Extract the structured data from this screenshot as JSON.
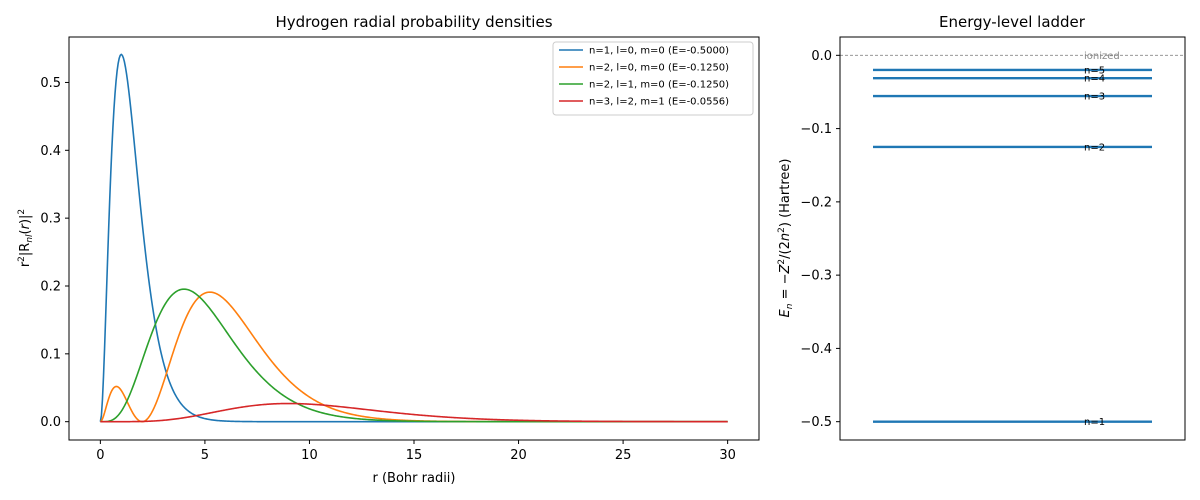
{
  "chart_data": [
    {
      "type": "line",
      "title": "Hydrogen radial probability densities",
      "xlabel": "r (Bohr radii)",
      "ylabel": "r²|R_nl(r)|²",
      "xlim": [
        -1.5,
        31.5
      ],
      "ylim": [
        -0.027,
        0.567
      ],
      "xticks": [
        0,
        5,
        10,
        15,
        20,
        25,
        30
      ],
      "xtick_labels": [
        "0",
        "5",
        "10",
        "15",
        "20",
        "25",
        "30"
      ],
      "yticks": [
        0.0,
        0.1,
        0.2,
        0.3,
        0.4,
        0.5
      ],
      "ytick_labels": [
        "0.0",
        "0.1",
        "0.2",
        "0.3",
        "0.4",
        "0.5"
      ],
      "grid": false,
      "legend_position": "top-right",
      "x_range": [
        0,
        30
      ],
      "series": [
        {
          "name": "n=1, l=0, m=0  (E=-0.5000)",
          "n": 1,
          "l": 0,
          "color": "#1f77b4"
        },
        {
          "name": "n=2, l=0, m=0  (E=-0.1250)",
          "n": 2,
          "l": 0,
          "color": "#ff7f0e"
        },
        {
          "name": "n=2, l=1, m=0  (E=-0.1250)",
          "n": 2,
          "l": 1,
          "color": "#2ca02c"
        },
        {
          "name": "n=3, l=2, m=1  (E=-0.0556)",
          "n": 3,
          "l": 2,
          "color": "#d62728"
        }
      ]
    },
    {
      "type": "energy-levels",
      "title": "Energy-level ladder",
      "ylabel": "E_n = −Z²/(2n²)  (Hartree)",
      "ylim": [
        -0.525,
        0.025
      ],
      "yticks": [
        0.0,
        -0.1,
        -0.2,
        -0.3,
        -0.4,
        -0.5
      ],
      "ytick_labels": [
        "0.0",
        "−0.1",
        "−0.2",
        "−0.3",
        "−0.4",
        "−0.5"
      ],
      "reference_line": {
        "value": 0.0,
        "label": "ionized"
      },
      "levels": [
        {
          "label": "n=1",
          "n": 1,
          "energy": -0.5
        },
        {
          "label": "n=2",
          "n": 2,
          "energy": -0.125
        },
        {
          "label": "n=3",
          "n": 3,
          "energy": -0.0556
        },
        {
          "label": "n=4",
          "n": 4,
          "energy": -0.03125
        },
        {
          "label": "n=5",
          "n": 5,
          "energy": -0.02
        }
      ],
      "color": "#1f77b4"
    }
  ]
}
